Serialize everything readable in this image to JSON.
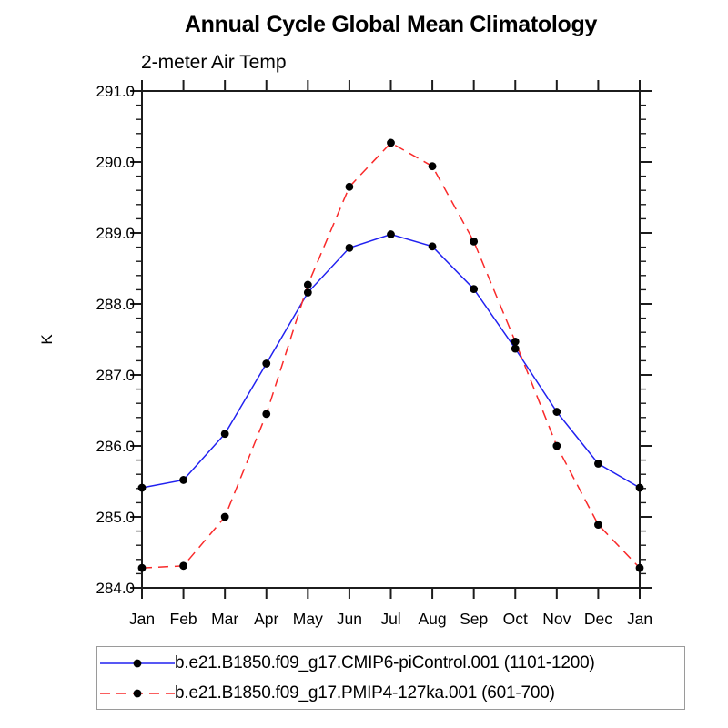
{
  "page": {
    "background": "#ffffff"
  },
  "chart_data": {
    "type": "line",
    "title": "Annual Cycle Global Mean Climatology",
    "subtitle": "2-meter Air Temp",
    "ylabel": "K",
    "xlabel": "",
    "categories": [
      "Jan",
      "Feb",
      "Mar",
      "Apr",
      "May",
      "Jun",
      "Jul",
      "Aug",
      "Sep",
      "Oct",
      "Nov",
      "Dec",
      "Jan"
    ],
    "series": [
      {
        "name": "b.e21.B1850.f09_g17.CMIP6-piControl.001 (1101-1200)",
        "color": "#2121f0",
        "line_style": "solid",
        "marker": "circle",
        "marker_color": "#000000",
        "values": [
          285.41,
          285.52,
          286.17,
          287.16,
          288.16,
          288.79,
          288.98,
          288.81,
          288.21,
          287.37,
          286.48,
          285.75,
          285.41
        ]
      },
      {
        "name": "b.e21.B1850.f09_g17.PMIP4-127ka.001 (601-700)",
        "color": "#f92a2a",
        "line_style": "dashed",
        "marker": "circle",
        "marker_color": "#000000",
        "values": [
          284.28,
          284.31,
          285.0,
          286.45,
          288.27,
          289.65,
          290.27,
          289.94,
          288.88,
          287.47,
          286.0,
          284.89,
          284.28
        ]
      }
    ],
    "ylim": [
      284.0,
      291.0
    ],
    "ytick_step": 1.0,
    "ytick_minor_step": 0.2,
    "ytick_label_format": "1-decimal",
    "grid": false,
    "frame": "box-with-outward-ticks",
    "legend_position": "bottom",
    "axis_color": "#1c1c1c",
    "text_color": "#000000"
  }
}
